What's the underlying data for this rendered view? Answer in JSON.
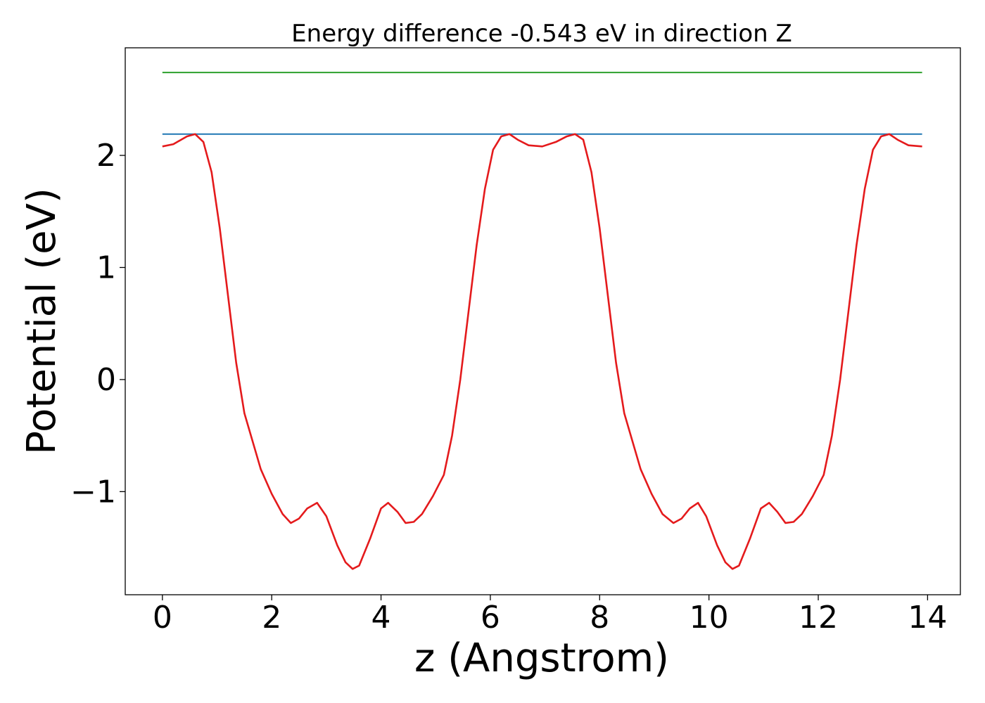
{
  "chart_data": {
    "type": "line",
    "title": "Energy difference -0.543 eV in direction Z",
    "xlabel": "z (Angstrom)",
    "ylabel": "Potential (eV)",
    "xlim": [
      -0.68,
      14.6
    ],
    "ylim": [
      -1.92,
      2.96
    ],
    "xticks": [
      0,
      2,
      4,
      6,
      8,
      10,
      12,
      14
    ],
    "xtick_labels": [
      "0",
      "2",
      "4",
      "6",
      "8",
      "10",
      "12",
      "14"
    ],
    "yticks": [
      -1,
      0,
      1,
      2
    ],
    "ytick_labels": [
      "−1",
      "0",
      "1",
      "2"
    ],
    "grid": false,
    "legend": "none",
    "series": [
      {
        "color": "#1f77b4",
        "x": [
          0,
          13.9
        ],
        "y": [
          2.19,
          2.19
        ]
      },
      {
        "color": "#2ca02c",
        "x": [
          0,
          13.9
        ],
        "y": [
          2.74,
          2.74
        ]
      },
      {
        "color": "#e41a1c",
        "x": [
          0,
          0.2,
          0.45,
          0.6,
          0.75,
          0.9,
          1.05,
          1.2,
          1.35,
          1.5,
          1.65,
          1.8,
          2.0,
          2.2,
          2.35,
          2.5,
          2.65,
          2.83,
          3.0,
          3.2,
          3.35,
          3.48,
          3.6,
          3.8,
          4.0,
          4.13,
          4.3,
          4.45,
          4.6,
          4.75,
          4.95,
          5.15,
          5.3,
          5.45,
          5.6,
          5.75,
          5.9,
          6.05,
          6.2,
          6.35,
          6.5,
          6.7,
          6.95,
          7.2,
          7.4,
          7.55,
          7.7,
          7.85,
          8.0,
          8.15,
          8.3,
          8.45,
          8.6,
          8.75,
          8.95,
          9.15,
          9.35,
          9.5,
          9.65,
          9.8,
          9.95,
          10.15,
          10.3,
          10.43,
          10.55,
          10.75,
          10.95,
          11.1,
          11.25,
          11.4,
          11.55,
          11.7,
          11.9,
          12.1,
          12.25,
          12.4,
          12.55,
          12.7,
          12.85,
          13.0,
          13.15,
          13.3,
          13.45,
          13.65,
          13.9
        ],
        "y": [
          2.08,
          2.1,
          2.17,
          2.19,
          2.12,
          1.85,
          1.35,
          0.75,
          0.15,
          -0.3,
          -0.55,
          -0.8,
          -1.02,
          -1.2,
          -1.28,
          -1.24,
          -1.15,
          -1.1,
          -1.22,
          -1.48,
          -1.63,
          -1.69,
          -1.66,
          -1.42,
          -1.15,
          -1.1,
          -1.18,
          -1.28,
          -1.27,
          -1.2,
          -1.04,
          -0.85,
          -0.5,
          0.0,
          0.6,
          1.2,
          1.7,
          2.05,
          2.17,
          2.19,
          2.14,
          2.09,
          2.08,
          2.12,
          2.17,
          2.19,
          2.14,
          1.85,
          1.35,
          0.75,
          0.15,
          -0.3,
          -0.55,
          -0.8,
          -1.02,
          -1.2,
          -1.28,
          -1.24,
          -1.15,
          -1.1,
          -1.22,
          -1.48,
          -1.63,
          -1.69,
          -1.66,
          -1.42,
          -1.15,
          -1.1,
          -1.18,
          -1.28,
          -1.27,
          -1.2,
          -1.04,
          -0.85,
          -0.5,
          0.0,
          0.6,
          1.2,
          1.7,
          2.05,
          2.17,
          2.19,
          2.14,
          2.09,
          2.08
        ]
      }
    ]
  }
}
